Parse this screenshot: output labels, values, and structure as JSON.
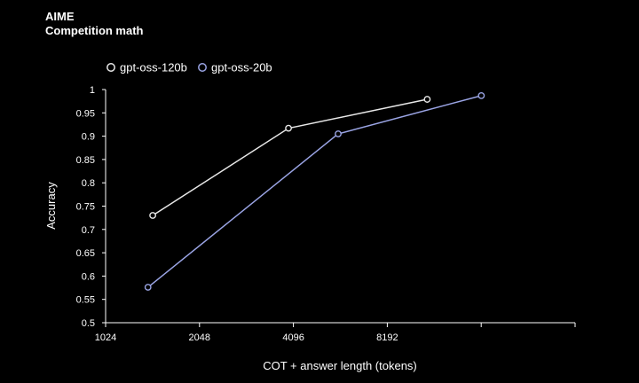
{
  "header": {
    "title": "AIME",
    "subtitle": "Competition math"
  },
  "chart_data": {
    "type": "line",
    "title": "AIME",
    "subtitle": "Competition math",
    "xlabel": "COT + answer length (tokens)",
    "ylabel": "Accuracy",
    "x_scale": "log2",
    "x_ticks": [
      1024,
      2048,
      4096,
      8192
    ],
    "xlim": [
      1024,
      32768
    ],
    "ylim": [
      0.5,
      1
    ],
    "y_ticks": [
      0.5,
      0.55,
      0.6,
      0.65,
      0.7,
      0.75,
      0.8,
      0.85,
      0.9,
      0.95,
      1
    ],
    "grid": false,
    "legend": "top-left",
    "series": [
      {
        "name": "gpt-oss-120b",
        "color": "#e8e8e8",
        "x": [
          1450,
          3950,
          11000
        ],
        "y": [
          0.73,
          0.917,
          0.979
        ]
      },
      {
        "name": "gpt-oss-20b",
        "color": "#9aa4e4",
        "x": [
          1400,
          5700,
          16400
        ],
        "y": [
          0.576,
          0.905,
          0.987
        ]
      }
    ]
  }
}
